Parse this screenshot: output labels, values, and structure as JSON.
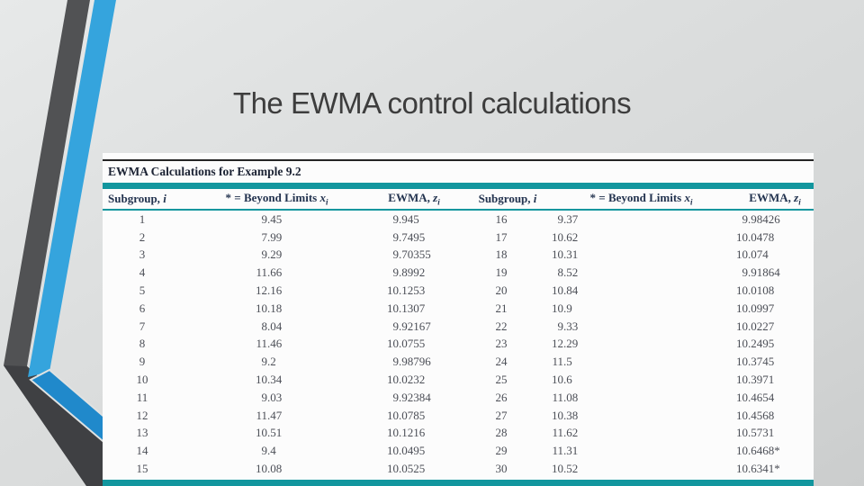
{
  "slide": {
    "title": "The EWMA control calculations"
  },
  "table": {
    "caption": "EWMA Calculations for Example 9.2",
    "headers": [
      {
        "pre": "Subgroup, ",
        "var": "i",
        "sub": ""
      },
      {
        "pre": "* = Beyond Limits ",
        "var": "x",
        "sub": "i"
      },
      {
        "pre": "EWMA, ",
        "var": "z",
        "sub": "i"
      },
      {
        "pre": "Subgroup, ",
        "var": "i",
        "sub": ""
      },
      {
        "pre": "* = Beyond Limits ",
        "var": "x",
        "sub": "i"
      },
      {
        "pre": "EWMA, ",
        "var": "z",
        "sub": "i"
      }
    ],
    "left_rows": [
      {
        "i": "1",
        "x": "9.45",
        "z": "9.945"
      },
      {
        "i": "2",
        "x": "7.99",
        "z": "9.7495"
      },
      {
        "i": "3",
        "x": "9.29",
        "z": "9.70355"
      },
      {
        "i": "4",
        "x": "11.66",
        "z": "9.8992"
      },
      {
        "i": "5",
        "x": "12.16",
        "z": "10.1253"
      },
      {
        "i": "6",
        "x": "10.18",
        "z": "10.1307"
      },
      {
        "i": "7",
        "x": "8.04",
        "z": "9.92167"
      },
      {
        "i": "8",
        "x": "11.46",
        "z": "10.0755"
      },
      {
        "i": "9",
        "x": "9.2",
        "z": "9.98796"
      },
      {
        "i": "10",
        "x": "10.34",
        "z": "10.0232"
      },
      {
        "i": "11",
        "x": "9.03",
        "z": "9.92384"
      },
      {
        "i": "12",
        "x": "11.47",
        "z": "10.0785"
      },
      {
        "i": "13",
        "x": "10.51",
        "z": "10.1216"
      },
      {
        "i": "14",
        "x": "9.4",
        "z": "10.0495"
      },
      {
        "i": "15",
        "x": "10.08",
        "z": "10.0525"
      }
    ],
    "right_rows": [
      {
        "i": "16",
        "x": "9.37",
        "z": "9.98426"
      },
      {
        "i": "17",
        "x": "10.62",
        "z": "10.0478"
      },
      {
        "i": "18",
        "x": "10.31",
        "z": "10.074"
      },
      {
        "i": "19",
        "x": "8.52",
        "z": "9.91864"
      },
      {
        "i": "20",
        "x": "10.84",
        "z": "10.0108"
      },
      {
        "i": "21",
        "x": "10.9",
        "z": "10.0997"
      },
      {
        "i": "22",
        "x": "9.33",
        "z": "10.0227"
      },
      {
        "i": "23",
        "x": "12.29",
        "z": "10.2495"
      },
      {
        "i": "24",
        "x": "11.5",
        "z": "10.3745"
      },
      {
        "i": "25",
        "x": "10.6",
        "z": "10.3971"
      },
      {
        "i": "26",
        "x": "11.08",
        "z": "10.4654"
      },
      {
        "i": "27",
        "x": "10.38",
        "z": "10.4568"
      },
      {
        "i": "28",
        "x": "11.62",
        "z": "10.5731"
      },
      {
        "i": "29",
        "x": "11.31",
        "z": "10.6468*"
      },
      {
        "i": "30",
        "x": "10.52",
        "z": "10.6341*"
      }
    ]
  },
  "colors": {
    "teal_accent": "#12969e",
    "band_blue": "#35a4dd",
    "band_blue_dark": "#2089cb",
    "band_gray": "#515254",
    "band_gray_dark": "#3f4043",
    "header_text": "#23334f",
    "body_text": "#4b4e56",
    "caption_text": "#1b2233",
    "title_text": "#3d3d3d",
    "panel_bg": "#fcfcfc"
  }
}
